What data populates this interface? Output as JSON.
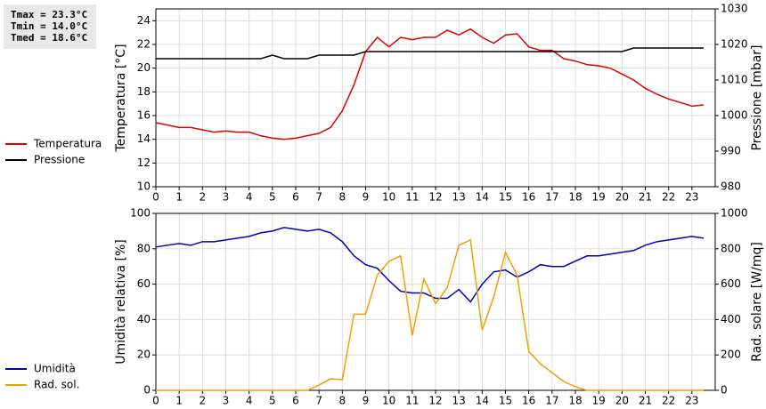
{
  "chart_data": [
    {
      "type": "line",
      "annotations": [
        "Tmax = 23.3°C",
        "Tmin = 14.0°C",
        "Tmed = 18.6°C"
      ],
      "y_label": "Temperatura [°C]",
      "y2_label": "Pressione [mbar]",
      "x": [
        0,
        0.5,
        1,
        1.5,
        2,
        2.5,
        3,
        3.5,
        4,
        4.5,
        5,
        5.5,
        6,
        6.5,
        7,
        7.5,
        8,
        8.5,
        9,
        9.5,
        10,
        10.5,
        11,
        11.5,
        12,
        12.5,
        13,
        13.5,
        14,
        14.5,
        15,
        15.5,
        16,
        16.5,
        17,
        17.5,
        18,
        18.5,
        19,
        19.5,
        20,
        20.5,
        21,
        21.5,
        22,
        22.5,
        23,
        23.5
      ],
      "xlim": [
        0,
        24
      ],
      "xticks": [
        0,
        1,
        2,
        3,
        4,
        5,
        6,
        7,
        8,
        9,
        10,
        11,
        12,
        13,
        14,
        15,
        16,
        17,
        18,
        19,
        20,
        21,
        22,
        23
      ],
      "ylim": [
        10,
        25
      ],
      "yticks": [
        10,
        12,
        14,
        16,
        18,
        20,
        22,
        24
      ],
      "y2lim": [
        980,
        1030
      ],
      "y2ticks": [
        980,
        990,
        1000,
        1010,
        1020,
        1030
      ],
      "grid": true,
      "series": [
        {
          "name": "Temperatura",
          "color": "#dd0000",
          "values": [
            15.4,
            15.2,
            15.0,
            15.0,
            14.8,
            14.6,
            14.7,
            14.6,
            14.6,
            14.3,
            14.1,
            14.0,
            14.1,
            14.3,
            14.5,
            15.0,
            16.4,
            18.6,
            21.4,
            22.6,
            21.8,
            22.6,
            22.4,
            22.6,
            22.6,
            23.2,
            22.8,
            23.3,
            22.6,
            22.1,
            22.8,
            22.9,
            21.8,
            21.5,
            21.5,
            20.8,
            20.6,
            20.3,
            20.2,
            20.0,
            19.5,
            19.0,
            18.3,
            17.8,
            17.4,
            17.1,
            16.8,
            16.9
          ]
        },
        {
          "name": "Pressione",
          "color": "#000000",
          "axis": "y2",
          "values": [
            1016,
            1016,
            1016,
            1016,
            1016,
            1016,
            1016,
            1016,
            1016,
            1016,
            1017,
            1016,
            1016,
            1016,
            1017,
            1017,
            1017,
            1017,
            1018,
            1018,
            1018,
            1018,
            1018,
            1018,
            1018,
            1018,
            1018,
            1018,
            1018,
            1018,
            1018,
            1018,
            1018,
            1018,
            1018,
            1018,
            1018,
            1018,
            1018,
            1018,
            1018,
            1019,
            1019,
            1019,
            1019,
            1019,
            1019,
            1019
          ]
        }
      ]
    },
    {
      "type": "line",
      "y_label": "Umidità relativa [%]",
      "y2_label": "Rad. solare [W/mq]",
      "x": [
        0,
        0.5,
        1,
        1.5,
        2,
        2.5,
        3,
        3.5,
        4,
        4.5,
        5,
        5.5,
        6,
        6.5,
        7,
        7.5,
        8,
        8.5,
        9,
        9.5,
        10,
        10.5,
        11,
        11.5,
        12,
        12.5,
        13,
        13.5,
        14,
        14.5,
        15,
        15.5,
        16,
        16.5,
        17,
        17.5,
        18,
        18.5,
        19,
        19.5,
        20,
        20.5,
        21,
        21.5,
        22,
        22.5,
        23,
        23.5
      ],
      "xlim": [
        0,
        24
      ],
      "xticks": [
        0,
        1,
        2,
        3,
        4,
        5,
        6,
        7,
        8,
        9,
        10,
        11,
        12,
        13,
        14,
        15,
        16,
        17,
        18,
        19,
        20,
        21,
        22,
        23
      ],
      "ylim": [
        0,
        100
      ],
      "yticks": [
        0,
        20,
        40,
        60,
        80,
        100
      ],
      "y2lim": [
        0,
        1000
      ],
      "y2ticks": [
        0,
        200,
        400,
        600,
        800,
        1000
      ],
      "grid": true,
      "series": [
        {
          "name": "Umidità",
          "color": "#0000bb",
          "values": [
            81,
            82,
            83,
            82,
            84,
            84,
            85,
            86,
            87,
            89,
            90,
            92,
            91,
            90,
            91,
            89,
            84,
            76,
            71,
            69,
            62,
            56,
            55,
            55,
            52,
            52,
            57,
            50,
            60,
            67,
            68,
            64,
            67,
            71,
            70,
            70,
            73,
            76,
            76,
            77,
            78,
            79,
            82,
            84,
            85,
            86,
            87,
            86
          ]
        },
        {
          "name": "Rad. sol.",
          "color": "#f0a000",
          "axis": "y2",
          "values": [
            0,
            0,
            0,
            0,
            0,
            0,
            0,
            0,
            0,
            0,
            0,
            0,
            0,
            0,
            30,
            65,
            60,
            430,
            430,
            650,
            730,
            760,
            310,
            630,
            490,
            580,
            820,
            850,
            340,
            530,
            780,
            650,
            220,
            150,
            100,
            50,
            20,
            0,
            0,
            0,
            0,
            0,
            0,
            0,
            0,
            0,
            0,
            0
          ]
        }
      ]
    }
  ]
}
